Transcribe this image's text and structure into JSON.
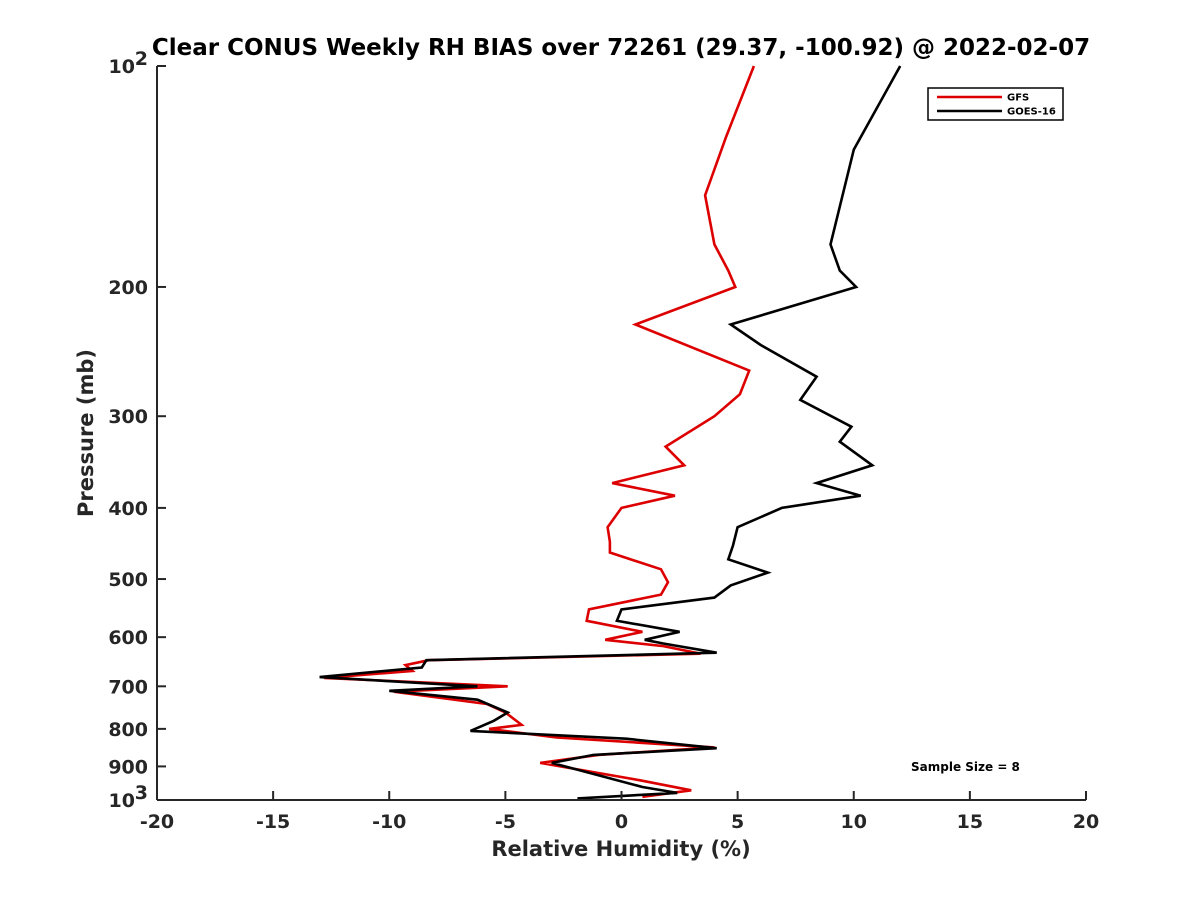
{
  "chart_data": {
    "type": "line",
    "title": "Clear CONUS Weekly RH BIAS over 72261 (29.37, -100.92) @ 2022-02-07",
    "xlabel": "Relative Humidity (%)",
    "ylabel": "Pressure (mb)",
    "xlim": [
      -20,
      20
    ],
    "ylim": [
      100,
      1000
    ],
    "yscale": "log",
    "y_reversed": true,
    "grid": false,
    "legend_position": "top-right",
    "x_ticks": [
      "-20",
      "-15",
      "-10",
      "-5",
      "0",
      "5",
      "10",
      "15",
      "20"
    ],
    "y_ticks": [
      {
        "value": 100,
        "label": "10",
        "sup": "2"
      },
      {
        "value": 200,
        "label": "200",
        "sup": ""
      },
      {
        "value": 300,
        "label": "300",
        "sup": ""
      },
      {
        "value": 400,
        "label": "400",
        "sup": ""
      },
      {
        "value": 500,
        "label": "500",
        "sup": ""
      },
      {
        "value": 600,
        "label": "600",
        "sup": ""
      },
      {
        "value": 700,
        "label": "700",
        "sup": ""
      },
      {
        "value": 800,
        "label": "800",
        "sup": ""
      },
      {
        "value": 900,
        "label": "900",
        "sup": ""
      },
      {
        "value": 1000,
        "label": "10",
        "sup": "3"
      }
    ],
    "series": [
      {
        "name": "GFS",
        "color": "#dd0000",
        "points": [
          [
            5.7,
            100
          ],
          [
            4.5,
            125
          ],
          [
            3.6,
            150
          ],
          [
            4.0,
            175
          ],
          [
            4.6,
            190
          ],
          [
            4.9,
            200
          ],
          [
            0.6,
            225
          ],
          [
            5.5,
            260
          ],
          [
            5.1,
            280
          ],
          [
            4.0,
            300
          ],
          [
            1.9,
            330
          ],
          [
            2.7,
            350
          ],
          [
            -0.4,
            370
          ],
          [
            2.3,
            385
          ],
          [
            0.0,
            400
          ],
          [
            -0.6,
            425
          ],
          [
            -0.5,
            445
          ],
          [
            -0.5,
            460
          ],
          [
            1.7,
            485
          ],
          [
            2.0,
            505
          ],
          [
            1.7,
            525
          ],
          [
            -1.4,
            550
          ],
          [
            -1.5,
            570
          ],
          [
            0.9,
            590
          ],
          [
            -0.7,
            605
          ],
          [
            1.8,
            617
          ],
          [
            3.4,
            632
          ],
          [
            -8.3,
            645
          ],
          [
            -9.3,
            655
          ],
          [
            -9.0,
            667
          ],
          [
            -12.8,
            682
          ],
          [
            -4.9,
            700
          ],
          [
            -9.8,
            712
          ],
          [
            -5.8,
            740
          ],
          [
            -5.0,
            760
          ],
          [
            -4.3,
            790
          ],
          [
            -5.7,
            800
          ],
          [
            -2.8,
            822
          ],
          [
            4.0,
            848
          ],
          [
            -1.0,
            868
          ],
          [
            -3.5,
            890
          ],
          [
            0.8,
            940
          ],
          [
            3.0,
            970
          ],
          [
            0.9,
            990
          ]
        ]
      },
      {
        "name": "GOES-16",
        "color": "#000000",
        "points": [
          [
            12.0,
            100
          ],
          [
            10.0,
            130
          ],
          [
            9.0,
            175
          ],
          [
            9.4,
            190
          ],
          [
            10.1,
            200
          ],
          [
            4.7,
            225
          ],
          [
            6.0,
            240
          ],
          [
            8.4,
            265
          ],
          [
            7.7,
            285
          ],
          [
            9.9,
            310
          ],
          [
            9.4,
            325
          ],
          [
            10.8,
            350
          ],
          [
            8.4,
            370
          ],
          [
            10.3,
            385
          ],
          [
            6.9,
            400
          ],
          [
            5.0,
            425
          ],
          [
            4.8,
            450
          ],
          [
            4.6,
            470
          ],
          [
            6.3,
            490
          ],
          [
            4.7,
            510
          ],
          [
            4.0,
            530
          ],
          [
            0.0,
            550
          ],
          [
            -0.2,
            570
          ],
          [
            2.5,
            590
          ],
          [
            1.0,
            605
          ],
          [
            1.8,
            612
          ],
          [
            4.1,
            630
          ],
          [
            -8.4,
            645
          ],
          [
            -8.6,
            660
          ],
          [
            -13.0,
            680
          ],
          [
            -6.2,
            700
          ],
          [
            -10.0,
            710
          ],
          [
            -6.2,
            730
          ],
          [
            -4.9,
            760
          ],
          [
            -5.5,
            780
          ],
          [
            -6.5,
            805
          ],
          [
            0.2,
            825
          ],
          [
            4.1,
            850
          ],
          [
            -1.2,
            868
          ],
          [
            -3.0,
            890
          ],
          [
            -1.3,
            920
          ],
          [
            0.9,
            960
          ],
          [
            2.4,
            978
          ],
          [
            -1.9,
            995
          ]
        ]
      }
    ],
    "annotation": "Sample Size = 8"
  }
}
